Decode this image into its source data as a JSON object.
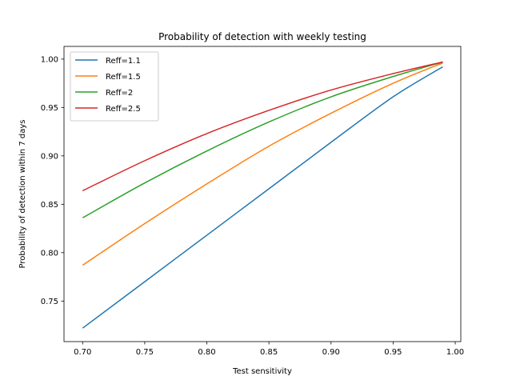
{
  "chart_data": {
    "type": "line",
    "title": "Probability of detection with weekly testing",
    "xlabel": "Test sensitivity",
    "ylabel": "Probability of detection within 7 days",
    "xlim": [
      0.685,
      1.0045
    ],
    "ylim": [
      0.7081,
      1.0131
    ],
    "xticks": [
      0.7,
      0.75,
      0.8,
      0.85,
      0.9,
      0.95,
      1.0
    ],
    "xtick_labels": [
      "0.70",
      "0.75",
      "0.80",
      "0.85",
      "0.90",
      "0.95",
      "1.00"
    ],
    "yticks": [
      0.75,
      0.8,
      0.85,
      0.9,
      0.95,
      1.0
    ],
    "ytick_labels": [
      "0.75",
      "0.80",
      "0.85",
      "0.90",
      "0.95",
      "1.00"
    ],
    "grid": false,
    "legend_position": "upper-left",
    "x": [
      0.7,
      0.75,
      0.8,
      0.85,
      0.9,
      0.95,
      0.99
    ],
    "series": [
      {
        "name": "Reff=1.1",
        "color": "#1f77b4",
        "values": [
          0.722,
          0.77,
          0.818,
          0.866,
          0.914,
          0.961,
          0.992
        ]
      },
      {
        "name": "Reff=1.5",
        "color": "#ff7f0e",
        "values": [
          0.787,
          0.83,
          0.871,
          0.91,
          0.944,
          0.975,
          0.996
        ]
      },
      {
        "name": "Reff=2",
        "color": "#2ca02c",
        "values": [
          0.836,
          0.872,
          0.905,
          0.935,
          0.961,
          0.982,
          0.997
        ]
      },
      {
        "name": "Reff=2.5",
        "color": "#d62728",
        "values": [
          0.864,
          0.895,
          0.923,
          0.947,
          0.968,
          0.985,
          0.997
        ]
      }
    ]
  }
}
